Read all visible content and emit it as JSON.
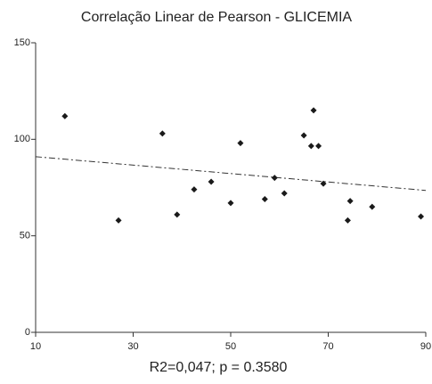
{
  "chart_data": {
    "type": "scatter",
    "title": "Correlação Linear de Pearson - GLICEMIA",
    "note": "R2=0,047;   p = 0.3580",
    "x": [
      16,
      27,
      36,
      39,
      42.5,
      46,
      50,
      52,
      57,
      59,
      61,
      65,
      67,
      66.5,
      68,
      69,
      74,
      74.5,
      79,
      89
    ],
    "values": [
      112,
      58,
      103,
      61,
      74,
      78,
      67,
      98,
      69,
      80,
      72,
      102,
      115,
      96.5,
      96.5,
      77,
      58,
      68,
      65,
      60
    ],
    "color": "#1a1a1a",
    "trend": {
      "x": [
        10,
        90
      ],
      "values": [
        91,
        73.5
      ]
    },
    "xlim": [
      10,
      90
    ],
    "xticks": [
      10,
      30,
      50,
      70,
      90
    ],
    "ylim": [
      0,
      150
    ],
    "yticks": [
      0,
      50,
      100,
      150
    ],
    "grid": false
  }
}
